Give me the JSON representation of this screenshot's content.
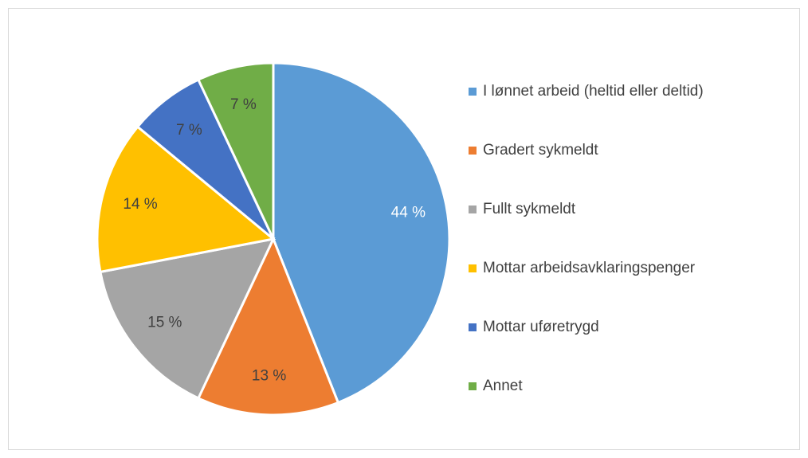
{
  "chart_data": {
    "type": "pie",
    "categories": [
      "I lønnet arbeid (heltid eller deltid)",
      "Gradert sykmeldt",
      "Fullt sykmeldt",
      "Mottar arbeidsavklaringspenger",
      "Mottar uføretrygd",
      "Annet"
    ],
    "values": [
      44,
      13,
      15,
      14,
      7,
      7
    ],
    "value_labels": [
      "44 %",
      "13 %",
      "15 %",
      "14 %",
      "7 %",
      "7 %"
    ],
    "colors": [
      "#5b9bd5",
      "#ed7d31",
      "#a5a5a5",
      "#ffc000",
      "#4472c4",
      "#70ad47"
    ],
    "legend": "right"
  }
}
